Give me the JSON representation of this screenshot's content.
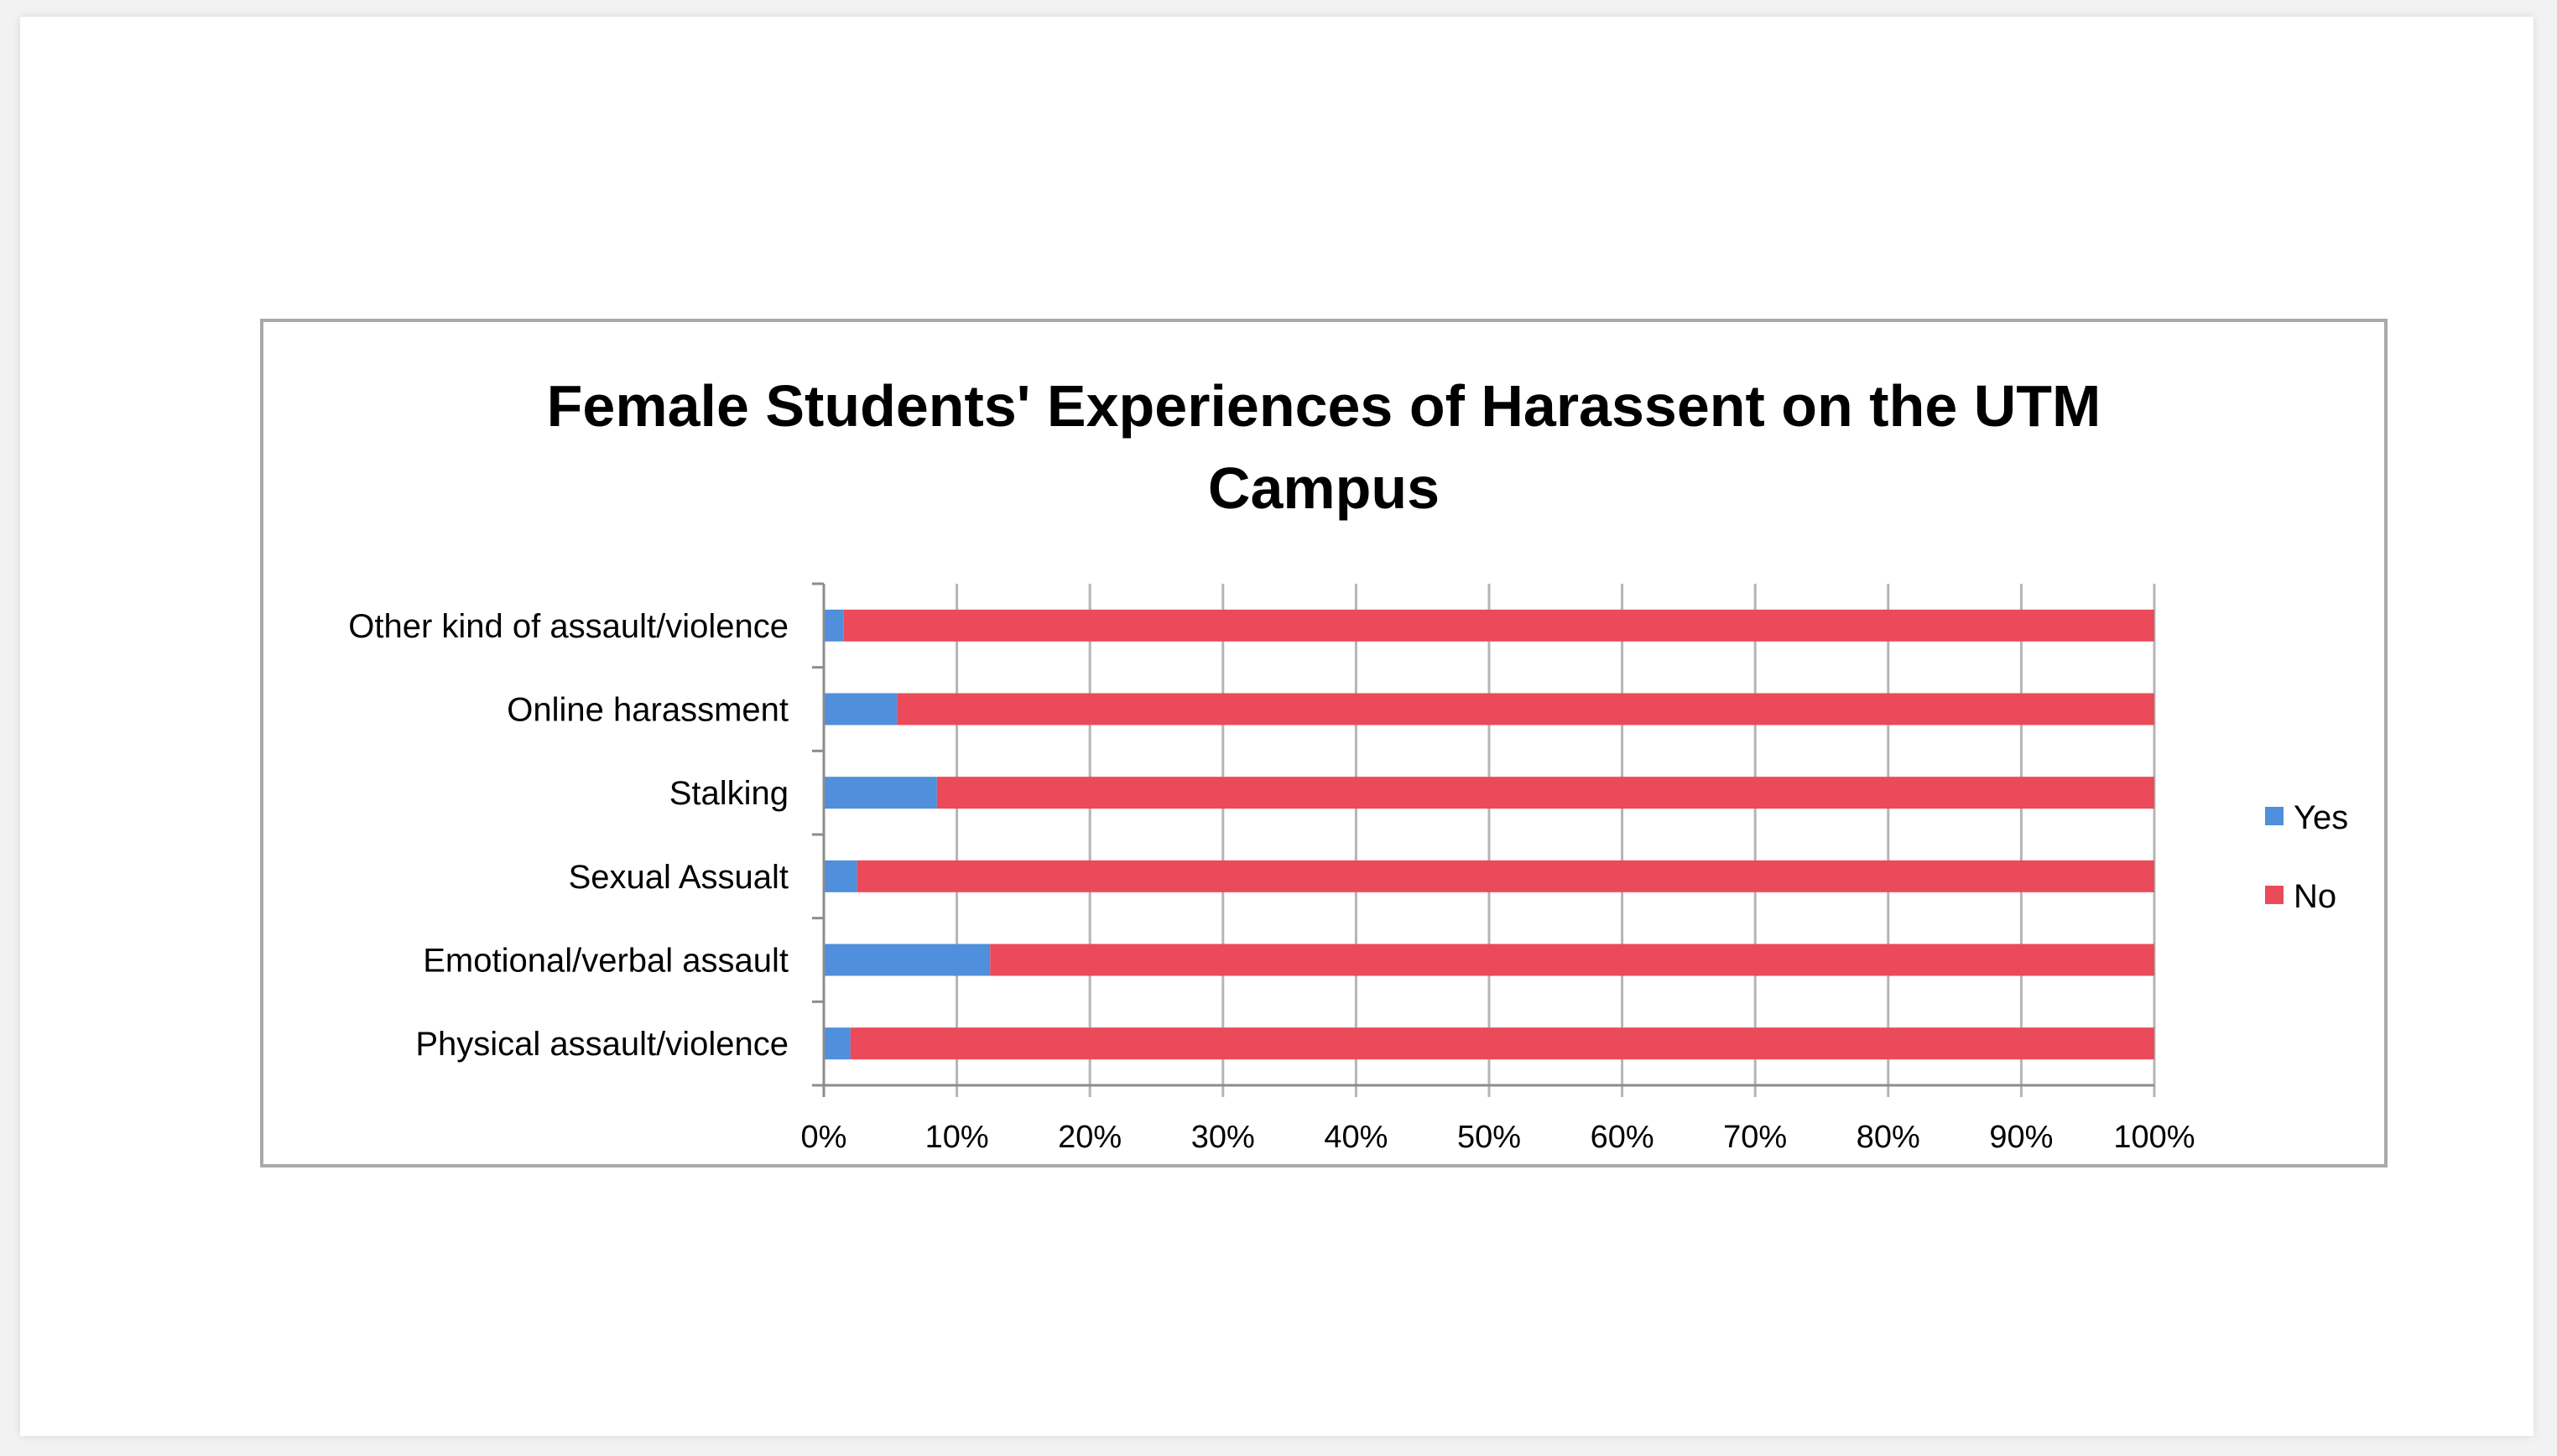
{
  "chart_data": {
    "type": "bar",
    "orientation": "horizontal",
    "stacked": "percent",
    "title_lines": [
      "Female Students' Experiences of Harassent on the UTM",
      "Campus"
    ],
    "categories": [
      "Other kind of assault/violence",
      "Online harassment",
      "Stalking",
      "Sexual Assualt",
      "Emotional/verbal assault",
      "Physical assault/violence"
    ],
    "series": [
      {
        "name": "Yes",
        "color": "#4f8fdc",
        "values": [
          1.5,
          5.5,
          8.5,
          2.5,
          12.5,
          2
        ]
      },
      {
        "name": "No",
        "color": "#eb4a5a",
        "values": [
          98.5,
          94.5,
          91.5,
          97.5,
          87.5,
          98
        ]
      }
    ],
    "xlim": [
      0,
      100
    ],
    "xticks": [
      "0%",
      "10%",
      "20%",
      "30%",
      "40%",
      "50%",
      "60%",
      "70%",
      "80%",
      "90%",
      "100%"
    ],
    "grid": true,
    "legend_position": "right"
  }
}
